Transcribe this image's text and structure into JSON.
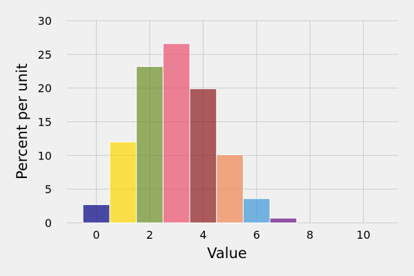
{
  "chart_data": {
    "type": "bar",
    "title": "",
    "xlabel": "Value",
    "ylabel": "Percent per unit",
    "xlim": [
      -1.1,
      11.3
    ],
    "ylim": [
      0,
      30
    ],
    "xticks": [
      0,
      2,
      4,
      6,
      8,
      10
    ],
    "yticks": [
      0,
      5,
      10,
      15,
      20,
      25,
      30
    ],
    "grid": true,
    "bar_width": 1,
    "bars": [
      {
        "x": 0,
        "value": 2.7,
        "color": "#000080"
      },
      {
        "x": 1,
        "value": 12.0,
        "color": "#ffd700"
      },
      {
        "x": 2,
        "value": 23.2,
        "color": "#6b8e23"
      },
      {
        "x": 3,
        "value": 26.6,
        "color": "#e8506e"
      },
      {
        "x": 4,
        "value": 19.9,
        "color": "#8b1a1a"
      },
      {
        "x": 5,
        "value": 10.1,
        "color": "#f08350"
      },
      {
        "x": 6,
        "value": 3.6,
        "color": "#3c95d8"
      },
      {
        "x": 7,
        "value": 0.7,
        "color": "#660c80"
      }
    ],
    "bar_opacity": 0.7
  }
}
